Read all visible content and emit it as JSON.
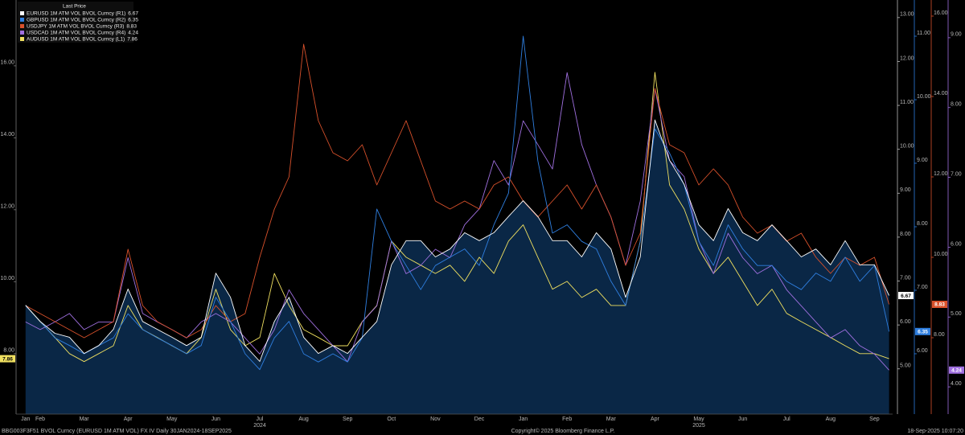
{
  "chart_data": {
    "type": "line",
    "legend_title": "Last Price",
    "legend": "top-left",
    "grid": false,
    "area_under_first_series": true,
    "area_color": "#0a2746",
    "categories": [
      "Jan",
      "Feb",
      null,
      null,
      "Mar",
      null,
      null,
      "Apr",
      null,
      null,
      "May",
      null,
      null,
      "Jun",
      null,
      null,
      "Jul",
      null,
      null,
      "Aug",
      null,
      null,
      "Sep",
      null,
      null,
      "Oct",
      null,
      null,
      "Nov",
      null,
      null,
      "Dec",
      null,
      null,
      "Jan",
      null,
      null,
      "Feb",
      null,
      null,
      "Mar",
      null,
      null,
      "Apr",
      null,
      null,
      "May",
      null,
      null,
      "Jun",
      null,
      null,
      "Jul",
      null,
      null,
      "Aug",
      null,
      null,
      "Sep",
      null
    ],
    "category_years": [
      null,
      null,
      null,
      null,
      null,
      null,
      null,
      null,
      null,
      null,
      null,
      null,
      null,
      null,
      null,
      null,
      "2024",
      null,
      null,
      null,
      null,
      null,
      null,
      null,
      null,
      null,
      null,
      null,
      null,
      null,
      null,
      null,
      null,
      null,
      null,
      null,
      null,
      null,
      null,
      null,
      null,
      null,
      null,
      null,
      null,
      null,
      "2025",
      null,
      null,
      null,
      null,
      null,
      null,
      null,
      null,
      null,
      null,
      null,
      null,
      null
    ],
    "axes": [
      {
        "id": "L1",
        "lim": [
          6.32,
          17.83
        ],
        "color": "#777777",
        "ticks": [
          {
            "value": 8,
            "label": "8.00"
          },
          {
            "value": 10,
            "label": "10.00"
          },
          {
            "value": 12,
            "label": "12.00"
          },
          {
            "value": 14,
            "label": "14.00"
          },
          {
            "value": 16,
            "label": "16.00"
          }
        ]
      },
      {
        "id": "R1",
        "lim": [
          3.97,
          13.4
        ],
        "color": "#bbbbbb",
        "ticks": [
          {
            "value": 5,
            "label": "5.00"
          },
          {
            "value": 6,
            "label": "6.00"
          },
          {
            "value": 7,
            "label": "7.00"
          },
          {
            "value": 8,
            "label": "8.00"
          },
          {
            "value": 9,
            "label": "9.00"
          },
          {
            "value": 10,
            "label": "10.00"
          },
          {
            "value": 11,
            "label": "11.00"
          },
          {
            "value": 12,
            "label": "12.00"
          },
          {
            "value": 13,
            "label": "13.00"
          }
        ]
      },
      {
        "id": "R2",
        "lim": [
          5.05,
          11.57
        ],
        "color": "#2f7fe0",
        "ticks": [
          {
            "value": 6,
            "label": "6.00"
          },
          {
            "value": 7,
            "label": "7.00"
          },
          {
            "value": 8,
            "label": "8.00"
          },
          {
            "value": 9,
            "label": "9.00"
          },
          {
            "value": 10,
            "label": "10.00"
          },
          {
            "value": 11,
            "label": "11.00"
          }
        ]
      },
      {
        "id": "R3",
        "lim": [
          6.1,
          16.4
        ],
        "color": "#d9512b",
        "ticks": [
          {
            "value": 8,
            "label": "8.00"
          },
          {
            "value": 10,
            "label": "10.00"
          },
          {
            "value": 12,
            "label": "12.00"
          },
          {
            "value": 14,
            "label": "14.00"
          },
          {
            "value": 16,
            "label": "16.00"
          }
        ]
      },
      {
        "id": "R4",
        "lim": [
          3.61,
          9.54
        ],
        "color": "#a070e0",
        "ticks": [
          {
            "value": 4,
            "label": "4.00"
          },
          {
            "value": 5,
            "label": "5.00"
          },
          {
            "value": 6,
            "label": "6.00"
          },
          {
            "value": 7,
            "label": "7.00"
          },
          {
            "value": 8,
            "label": "8.00"
          },
          {
            "value": 9,
            "label": "9.00"
          }
        ]
      }
    ],
    "series": [
      {
        "name": "EURUSD 1M ATM VOL BVOL Curncy (R1)",
        "axis": "R1",
        "color": "#ffffff",
        "values": [
          6.45,
          6.08,
          5.81,
          5.72,
          5.35,
          5.53,
          5.9,
          6.82,
          6.08,
          5.9,
          5.72,
          5.53,
          5.72,
          7.18,
          6.63,
          5.53,
          5.17,
          6.08,
          6.63,
          5.72,
          5.35,
          5.53,
          5.35,
          5.72,
          6.08,
          7.37,
          7.92,
          7.92,
          7.55,
          7.73,
          8.1,
          7.92,
          8.1,
          8.47,
          8.83,
          8.47,
          7.92,
          7.92,
          7.55,
          8.1,
          7.73,
          6.63,
          7.55,
          10.67,
          9.75,
          9.2,
          8.28,
          7.92,
          8.65,
          8.1,
          7.92,
          8.28,
          7.92,
          7.55,
          7.73,
          7.37,
          7.92,
          7.37,
          7.37,
          6.67
        ]
      },
      {
        "name": "GBPUSD 1M ATM VOL BVOL Curncy (R2)",
        "axis": "R2",
        "color": "#2f7fe0",
        "values": [
          6.76,
          6.51,
          6.25,
          6.13,
          6.0,
          6.13,
          6.25,
          6.63,
          6.38,
          6.25,
          6.13,
          6.0,
          6.13,
          6.89,
          6.51,
          6.0,
          5.75,
          6.25,
          6.51,
          6.0,
          5.87,
          6.0,
          5.87,
          6.25,
          8.28,
          7.77,
          7.39,
          7.01,
          7.39,
          7.52,
          7.65,
          7.39,
          8.03,
          8.53,
          11.0,
          9.04,
          7.9,
          8.03,
          7.77,
          7.65,
          7.14,
          6.76,
          7.77,
          9.54,
          9.16,
          8.66,
          7.77,
          7.39,
          8.03,
          7.65,
          7.39,
          7.39,
          7.14,
          7.01,
          7.27,
          7.14,
          7.52,
          7.14,
          7.39,
          6.35
        ]
      },
      {
        "name": "USDJPY 1M ATM VOL BVOL Curncy (R3)",
        "axis": "R3",
        "color": "#d9512b",
        "values": [
          8.8,
          8.6,
          8.4,
          8.2,
          8.0,
          8.2,
          8.4,
          10.2,
          8.8,
          8.4,
          8.2,
          8.0,
          8.2,
          8.8,
          8.4,
          8.6,
          10.0,
          11.2,
          12.0,
          15.3,
          13.4,
          12.6,
          12.4,
          12.8,
          11.8,
          12.6,
          13.4,
          12.4,
          11.4,
          11.2,
          11.4,
          11.2,
          11.8,
          12.0,
          11.4,
          11.0,
          11.4,
          11.8,
          11.2,
          11.8,
          11.0,
          9.8,
          10.6,
          14.2,
          12.8,
          12.6,
          11.8,
          12.2,
          11.8,
          11.0,
          10.6,
          10.8,
          10.4,
          10.6,
          10.0,
          9.6,
          10.0,
          9.8,
          10.0,
          8.83
        ]
      },
      {
        "name": "USDCAD 1M ATM VOL BVOL Curncy (R4)",
        "axis": "R4",
        "color": "#a070e0",
        "values": [
          4.93,
          4.82,
          4.93,
          5.05,
          4.82,
          4.93,
          4.93,
          5.85,
          5.05,
          4.93,
          4.82,
          4.7,
          4.93,
          5.05,
          4.93,
          4.7,
          4.47,
          4.82,
          5.39,
          5.05,
          4.82,
          4.59,
          4.36,
          4.93,
          5.16,
          6.09,
          5.62,
          5.74,
          5.97,
          5.85,
          6.32,
          6.55,
          7.24,
          6.89,
          7.81,
          7.47,
          7.12,
          8.5,
          7.47,
          6.89,
          6.43,
          5.74,
          6.66,
          8.27,
          7.24,
          7.01,
          6.09,
          5.62,
          6.2,
          5.85,
          5.62,
          5.74,
          5.39,
          5.16,
          4.93,
          4.7,
          4.82,
          4.59,
          4.47,
          4.24
        ]
      },
      {
        "name": "AUDUSD 1M ATM VOL BVOL Curncy (L1)",
        "axis": "L1",
        "color": "#f0e060",
        "values": [
          9.34,
          8.89,
          8.45,
          8.0,
          7.78,
          8.0,
          8.22,
          9.34,
          8.67,
          8.45,
          8.22,
          8.0,
          8.45,
          9.79,
          8.67,
          8.22,
          8.45,
          10.23,
          9.34,
          8.67,
          8.45,
          8.22,
          8.22,
          8.89,
          9.34,
          11.13,
          10.68,
          10.46,
          10.23,
          10.46,
          10.01,
          10.68,
          10.23,
          11.13,
          11.58,
          10.68,
          9.79,
          10.01,
          9.56,
          9.79,
          9.34,
          9.34,
          11.13,
          15.82,
          12.69,
          12.02,
          10.91,
          10.23,
          10.68,
          10.01,
          9.34,
          9.79,
          9.12,
          8.89,
          8.67,
          8.45,
          8.22,
          8.0,
          8.0,
          7.86
        ]
      }
    ],
    "footer": {
      "left": "BBG003F3F51 BVOL Curncy (EURUSD 1M ATM VOL) FX IV  Daily 30JAN2024-18SEP2025",
      "center": "Copyright© 2025 Bloomberg Finance L.P.",
      "right": "18-Sep-2025 10:07:20"
    }
  }
}
